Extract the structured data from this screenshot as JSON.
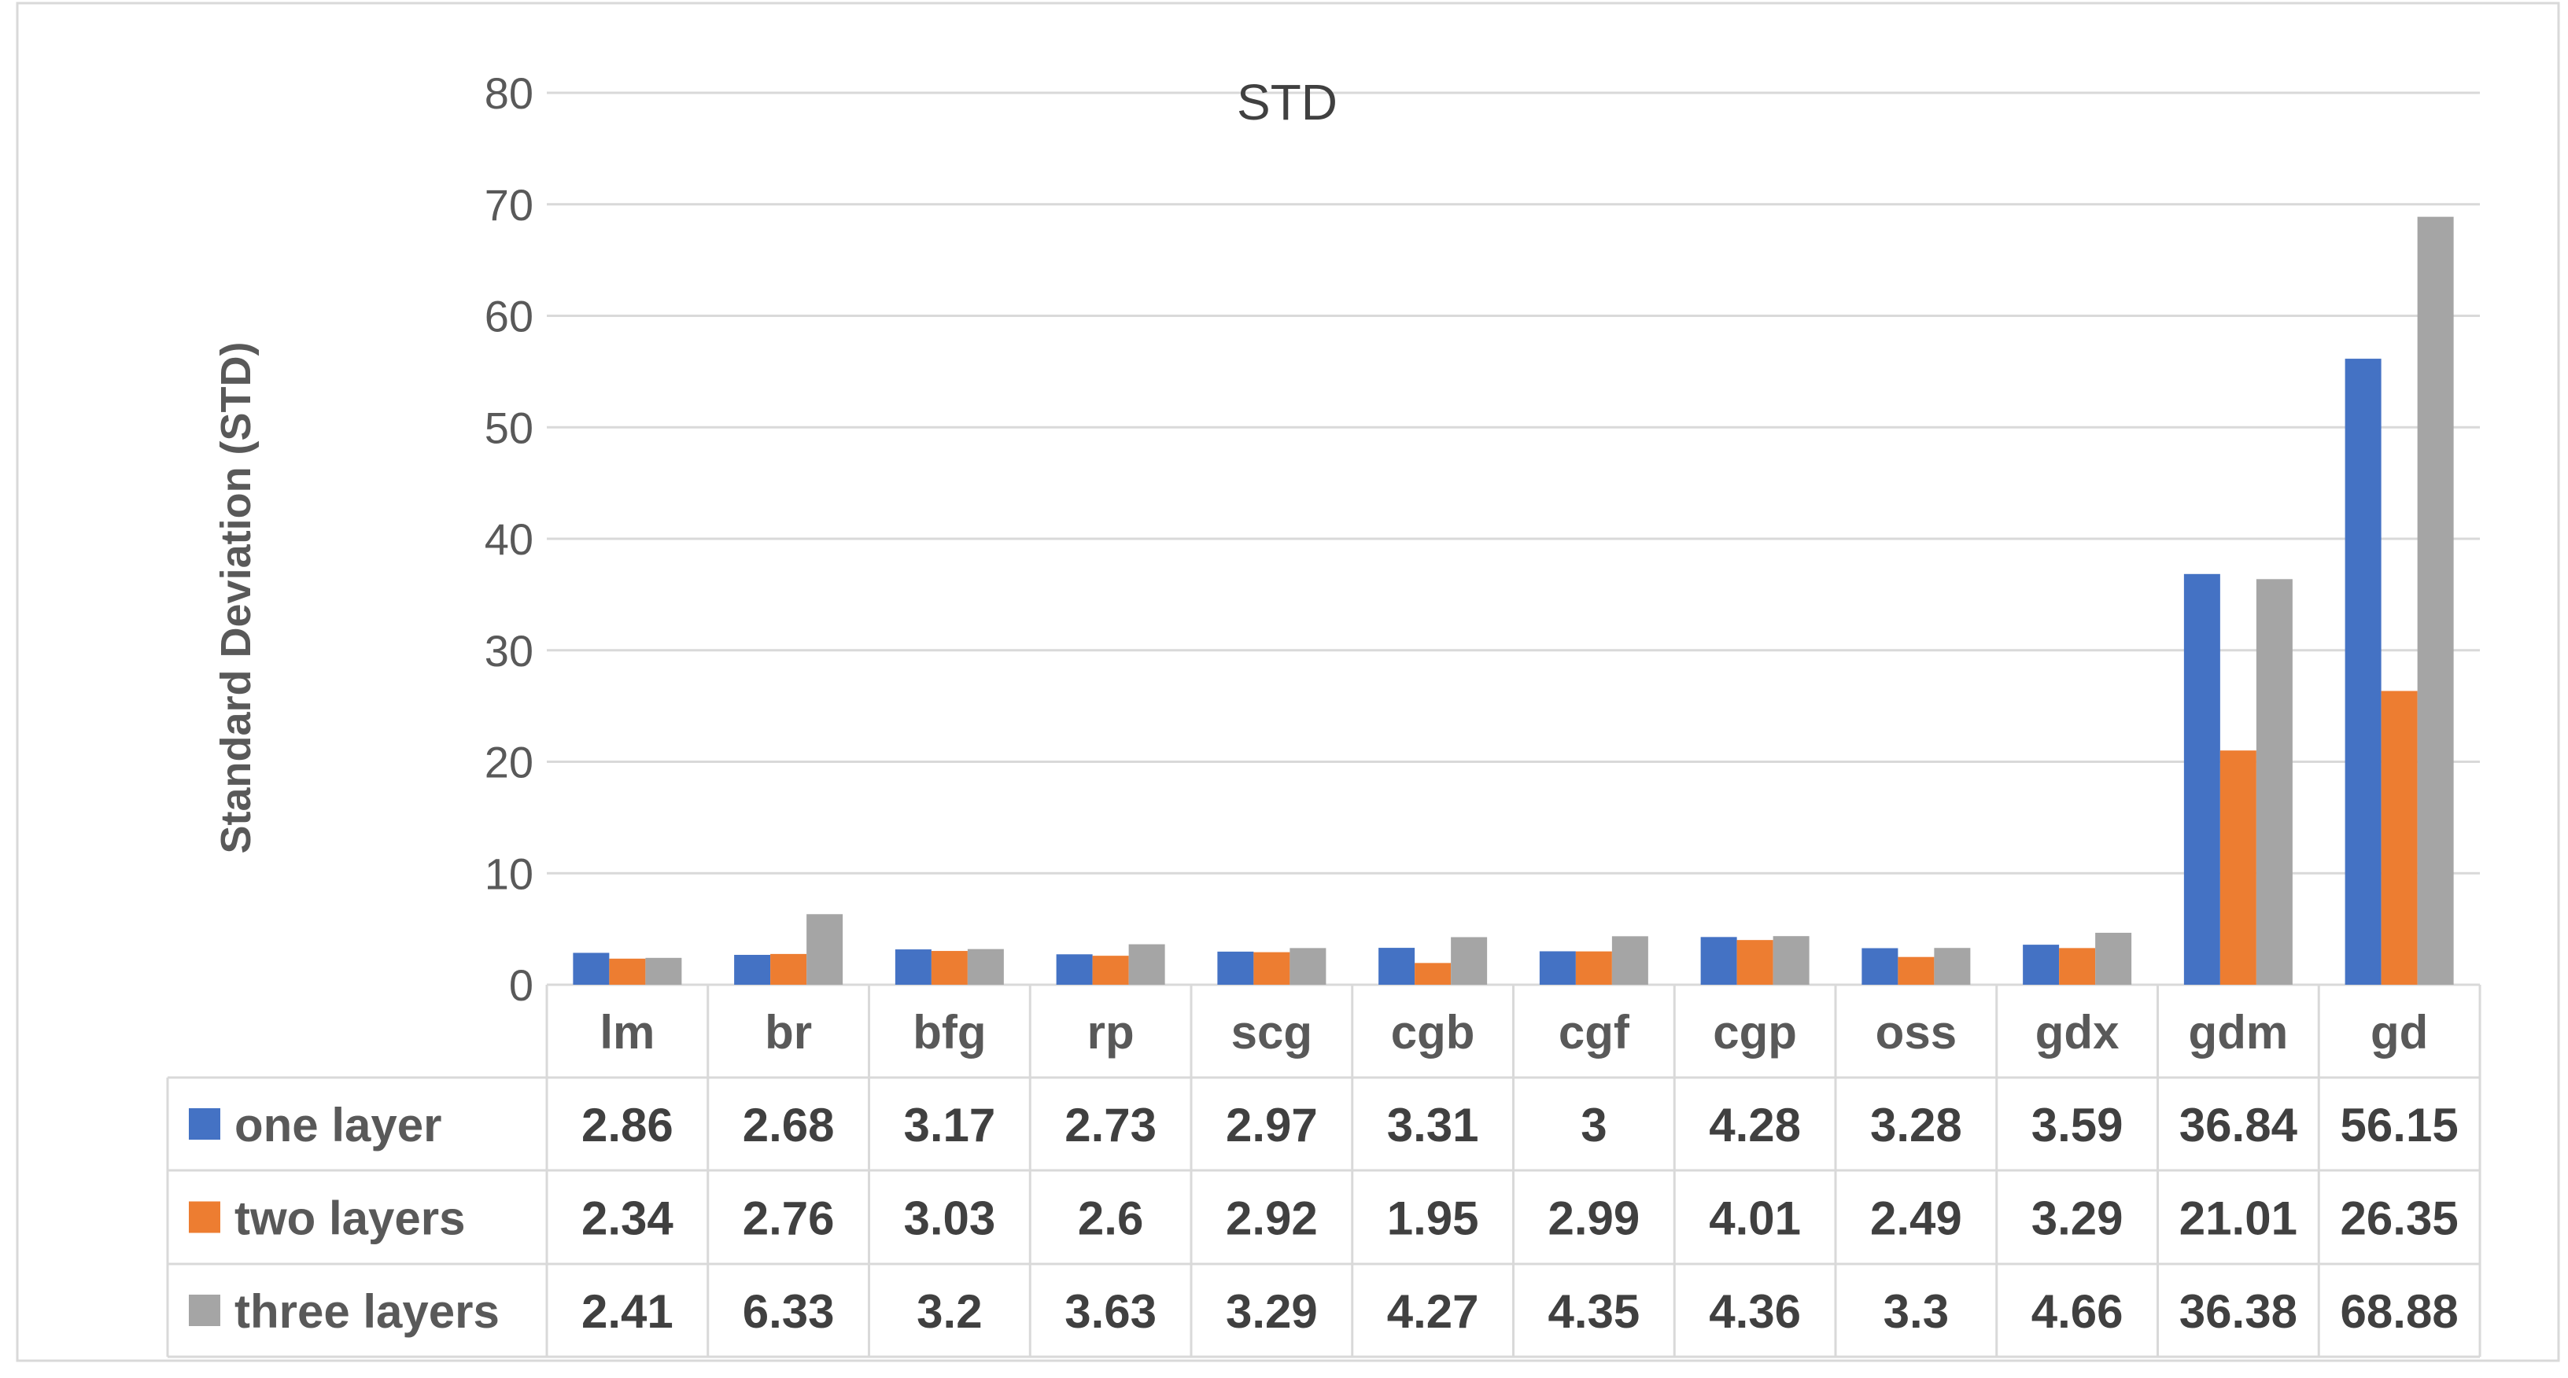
{
  "chart_data": {
    "type": "bar",
    "title": "STD",
    "xlabel": "",
    "ylabel": "Standard Deviation (STD)",
    "ylim": [
      0,
      80
    ],
    "yticks": [
      0,
      10,
      20,
      30,
      40,
      50,
      60,
      70,
      80
    ],
    "grid": true,
    "legend_placement": "data-table-below",
    "categories": [
      "lm",
      "br",
      "bfg",
      "rp",
      "scg",
      "cgb",
      "cgf",
      "cgp",
      "oss",
      "gdx",
      "gdm",
      "gd"
    ],
    "series": [
      {
        "name": "one layer",
        "color": "#4472C4",
        "values": [
          2.86,
          2.68,
          3.17,
          2.73,
          2.97,
          3.31,
          3,
          4.28,
          3.28,
          3.59,
          36.84,
          56.15
        ],
        "labels": [
          "2.86",
          "2.68",
          "3.17",
          "2.73",
          "2.97",
          "3.31",
          "3",
          "4.28",
          "3.28",
          "3.59",
          "36.84",
          "56.15"
        ]
      },
      {
        "name": "two layers",
        "color": "#ED7D31",
        "values": [
          2.34,
          2.76,
          3.03,
          2.6,
          2.92,
          1.95,
          2.99,
          4.01,
          2.49,
          3.29,
          21.01,
          26.35
        ],
        "labels": [
          "2.34",
          "2.76",
          "3.03",
          "2.6",
          "2.92",
          "1.95",
          "2.99",
          "4.01",
          "2.49",
          "3.29",
          "21.01",
          "26.35"
        ]
      },
      {
        "name": "three layers",
        "color": "#A5A5A5",
        "values": [
          2.41,
          6.33,
          3.2,
          3.63,
          3.29,
          4.27,
          4.35,
          4.36,
          3.3,
          4.66,
          36.38,
          68.88
        ],
        "labels": [
          "2.41",
          "6.33",
          "3.2",
          "3.63",
          "3.29",
          "4.27",
          "4.35",
          "4.36",
          "3.3",
          "4.66",
          "36.38",
          "68.88"
        ]
      }
    ]
  }
}
